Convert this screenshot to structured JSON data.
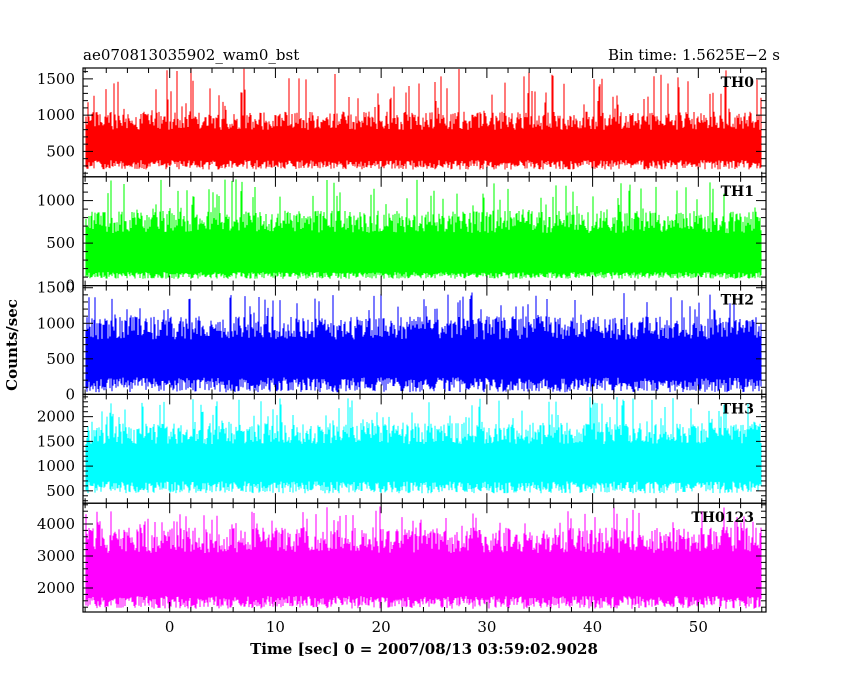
{
  "header": {
    "left_title": "ae070813035902_wam0_bst",
    "right_title": "Bin time: 1.5625E−2 s"
  },
  "chart_data": {
    "type": "line",
    "title": "ae070813035902_wam0_bst",
    "subtitle": "Bin time: 1.5625E−2 s",
    "xlabel": "Time [sec] 0 = 2007/08/13 03:59:02.9028",
    "ylabel": "Counts/sec",
    "xlim": [
      -8.2,
      56.4
    ],
    "x_range_data": [
      -8.0,
      56.0
    ],
    "bin_time": 0.015625,
    "x_ticks": [
      0,
      10,
      20,
      30,
      40,
      50
    ],
    "grid": false,
    "panels": [
      {
        "name": "TH0",
        "color": "#ff0000",
        "ylim": [
          150,
          1650
        ],
        "y_ticks": [
          500,
          1000,
          1500
        ],
        "baseline": 250,
        "typical_low": 330,
        "typical_high": 1050,
        "peak_max": 1650,
        "seed": 11
      },
      {
        "name": "TH1",
        "color": "#00ff00",
        "ylim": [
          0,
          1280
        ],
        "y_ticks": [
          0,
          500,
          1000
        ],
        "baseline": 80,
        "typical_low": 130,
        "typical_high": 880,
        "peak_max": 1250,
        "seed": 23
      },
      {
        "name": "TH2",
        "color": "#0000ff",
        "ylim": [
          0,
          1530
        ],
        "y_ticks": [
          0,
          500,
          1000,
          1500
        ],
        "baseline": 30,
        "typical_low": 160,
        "typical_high": 1100,
        "peak_max": 1450,
        "seed": 37
      },
      {
        "name": "TH3",
        "color": "#00ffff",
        "ylim": [
          250,
          2450
        ],
        "y_ticks": [
          500,
          1000,
          1500,
          2000
        ],
        "baseline": 450,
        "typical_low": 600,
        "typical_high": 1900,
        "peak_max": 2400,
        "seed": 41
      },
      {
        "name": "TH0123",
        "color": "#ff00ff",
        "ylim": [
          1250,
          4650
        ],
        "y_ticks": [
          2000,
          3000,
          4000
        ],
        "baseline": 1350,
        "typical_low": 1600,
        "typical_high": 3900,
        "peak_max": 4550,
        "seed": 53
      }
    ]
  }
}
